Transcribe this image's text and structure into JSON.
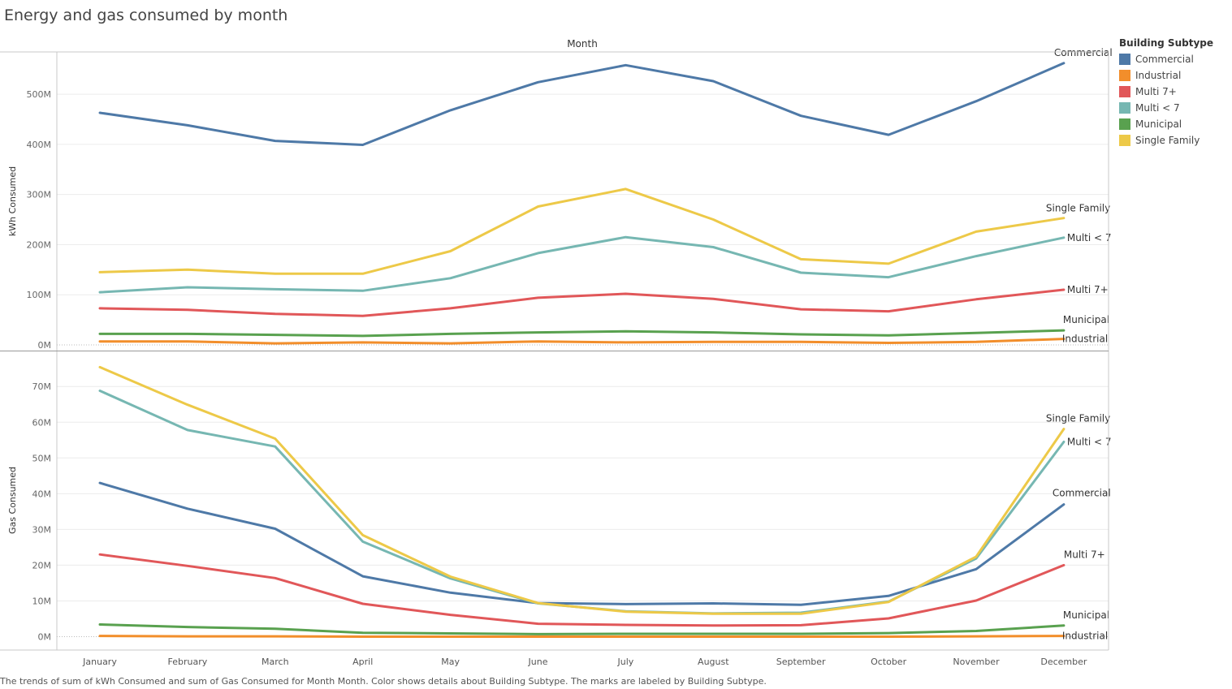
{
  "title": "Energy and gas consumed by month",
  "footer": "The trends of sum of kWh Consumed and sum of Gas Consumed for Month Month.  Color shows details about Building Subtype.  The marks are labeled by Building Subtype.",
  "legend": {
    "title": "Building Subtype",
    "items": [
      {
        "label": "Commercial",
        "color": "#4e79a7"
      },
      {
        "label": "Industrial",
        "color": "#f28e2b"
      },
      {
        "label": "Multi 7+",
        "color": "#e15759"
      },
      {
        "label": "Multi < 7",
        "color": "#76b7b2"
      },
      {
        "label": "Municipal",
        "color": "#59a14f"
      },
      {
        "label": "Single Family",
        "color": "#edc948"
      }
    ]
  },
  "chart_data": [
    {
      "type": "line",
      "column_header": "Month",
      "ylabel": "kWh Consumed",
      "ylim": [
        0,
        570
      ],
      "yticks": [
        0,
        100,
        200,
        300,
        400,
        500
      ],
      "ytick_labels": [
        "0M",
        "100M",
        "200M",
        "300M",
        "400M",
        "500M"
      ],
      "grid": true,
      "categories": [
        "January",
        "February",
        "March",
        "April",
        "May",
        "June",
        "July",
        "August",
        "September",
        "October",
        "November",
        "December"
      ],
      "series": [
        {
          "name": "Commercial",
          "color": "#4e79a7",
          "values": [
            463,
            438,
            407,
            399,
            468,
            524,
            558,
            526,
            457,
            419,
            486,
            562
          ]
        },
        {
          "name": "Industrial",
          "color": "#f28e2b",
          "values": [
            7,
            7,
            3,
            5,
            3,
            7,
            5,
            6,
            6,
            4,
            6,
            12
          ]
        },
        {
          "name": "Multi 7+",
          "color": "#e15759",
          "values": [
            73,
            70,
            62,
            58,
            73,
            94,
            102,
            92,
            71,
            67,
            91,
            110
          ]
        },
        {
          "name": "Multi < 7",
          "color": "#76b7b2",
          "values": [
            105,
            115,
            111,
            108,
            133,
            183,
            215,
            195,
            144,
            135,
            177,
            214
          ]
        },
        {
          "name": "Municipal",
          "color": "#59a14f",
          "values": [
            22,
            22,
            20,
            18,
            22,
            25,
            27,
            25,
            21,
            19,
            24,
            29
          ]
        },
        {
          "name": "Single Family",
          "color": "#edc948",
          "values": [
            145,
            150,
            142,
            142,
            187,
            276,
            311,
            250,
            171,
            162,
            226,
            253
          ]
        }
      ]
    },
    {
      "type": "line",
      "ylabel": "Gas Consumed",
      "ylim": [
        -2,
        77
      ],
      "yticks": [
        0,
        10,
        20,
        30,
        40,
        50,
        60,
        70
      ],
      "ytick_labels": [
        "0M",
        "10M",
        "20M",
        "30M",
        "40M",
        "50M",
        "60M",
        "70M"
      ],
      "grid": true,
      "categories": [
        "January",
        "February",
        "March",
        "April",
        "May",
        "June",
        "July",
        "August",
        "September",
        "October",
        "November",
        "December"
      ],
      "series": [
        {
          "name": "Commercial",
          "color": "#4e79a7",
          "values": [
            43.0,
            35.8,
            30.2,
            16.9,
            12.3,
            9.4,
            9.1,
            9.3,
            8.9,
            11.4,
            18.9,
            37.0
          ]
        },
        {
          "name": "Industrial",
          "color": "#f28e2b",
          "values": [
            0.2,
            0.1,
            0.1,
            0.0,
            0.0,
            0.0,
            0.0,
            0.0,
            0.0,
            0.0,
            0.1,
            0.2
          ]
        },
        {
          "name": "Multi 7+",
          "color": "#e15759",
          "values": [
            23.0,
            19.8,
            16.4,
            9.2,
            6.1,
            3.6,
            3.3,
            3.1,
            3.2,
            5.1,
            10.1,
            20.0
          ]
        },
        {
          "name": "Multi < 7",
          "color": "#76b7b2",
          "values": [
            68.8,
            57.8,
            53.2,
            26.6,
            16.3,
            9.3,
            7.1,
            6.5,
            6.7,
            9.8,
            21.9,
            54.5
          ]
        },
        {
          "name": "Municipal",
          "color": "#59a14f",
          "values": [
            3.4,
            2.7,
            2.2,
            1.1,
            0.9,
            0.7,
            0.8,
            0.8,
            0.8,
            1.0,
            1.6,
            3.1
          ]
        },
        {
          "name": "Single Family",
          "color": "#edc948",
          "values": [
            75.4,
            64.9,
            55.4,
            28.4,
            16.8,
            9.4,
            7.0,
            6.4,
            6.4,
            9.7,
            22.4,
            58.1
          ]
        }
      ]
    }
  ]
}
